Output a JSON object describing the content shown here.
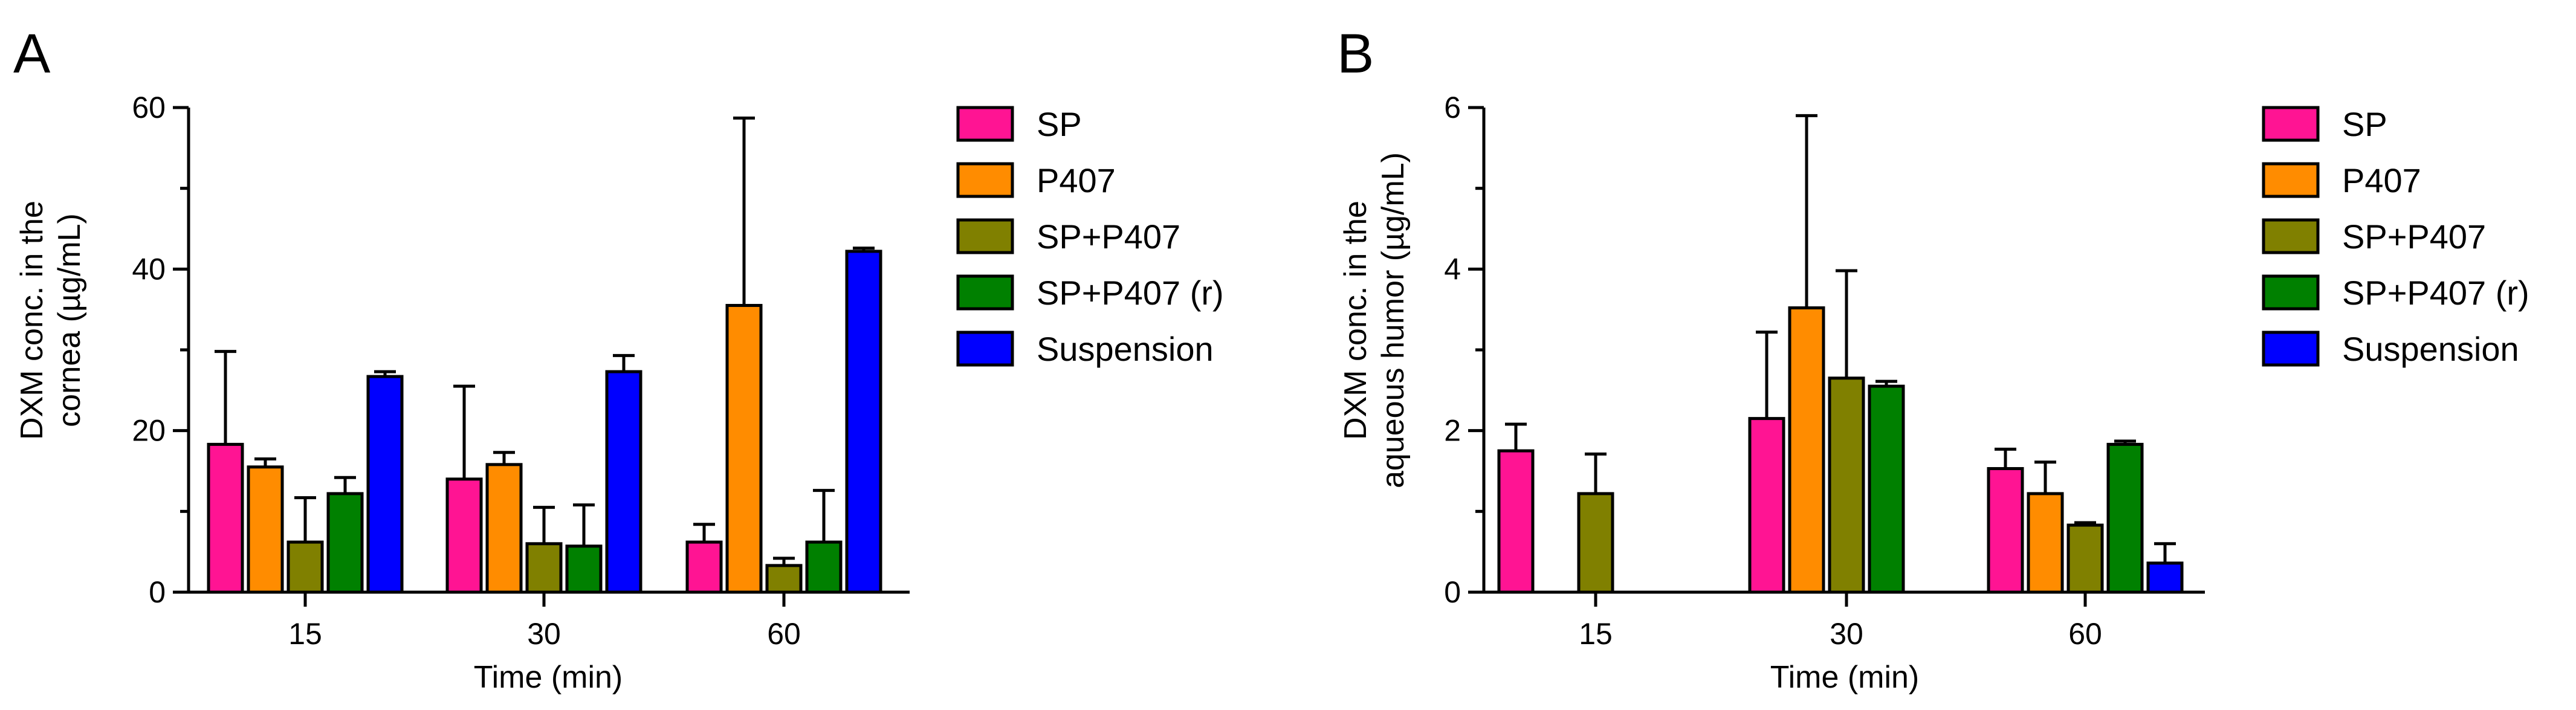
{
  "colors": {
    "SP": "#ff1493",
    "P407": "#ff8c00",
    "SP+P407": "#808000",
    "SP+P407 (r)": "#008000",
    "Suspension": "#0000ff"
  },
  "chart_data": [
    {
      "panel_label": "A",
      "type": "bar",
      "xlabel": "Time (min)",
      "ylabel_lines": [
        "DXM conc. in the",
        "cornea (µg/mL)"
      ],
      "categories": [
        "15",
        "30",
        "60"
      ],
      "ylim": [
        0,
        60
      ],
      "yticks": [
        "0",
        "20",
        "40",
        "60"
      ],
      "error_bars": "upper, SD",
      "legend_position": "right",
      "series": [
        {
          "name": "SP",
          "values": [
            18.3,
            14.0,
            6.2
          ],
          "errors": [
            11.5,
            11.5,
            2.2
          ]
        },
        {
          "name": "P407",
          "values": [
            15.5,
            15.8,
            35.5
          ],
          "errors": [
            1.0,
            1.5,
            23.2
          ]
        },
        {
          "name": "SP+P407",
          "values": [
            6.2,
            6.0,
            3.3
          ],
          "errors": [
            5.5,
            4.5,
            0.9
          ]
        },
        {
          "name": "SP+P407 (r)",
          "values": [
            12.2,
            5.7,
            6.2
          ],
          "errors": [
            2.0,
            5.1,
            6.4
          ]
        },
        {
          "name": "Suspension",
          "values": [
            26.7,
            27.3,
            42.2
          ],
          "errors": [
            0.6,
            2.0,
            0.4
          ]
        }
      ]
    },
    {
      "panel_label": "B",
      "type": "bar",
      "xlabel": "Time (min)",
      "ylabel_lines": [
        "DXM conc. in the",
        "aqueous humor (µg/mL)"
      ],
      "categories": [
        "15",
        "30",
        "60"
      ],
      "ylim": [
        0,
        6
      ],
      "yticks": [
        "0",
        "2",
        "4",
        "6"
      ],
      "error_bars": "upper, SD",
      "legend_position": "right",
      "series": [
        {
          "name": "SP",
          "values": [
            1.75,
            2.15,
            1.53
          ],
          "errors": [
            0.33,
            1.07,
            0.24
          ]
        },
        {
          "name": "P407",
          "values": [
            null,
            3.52,
            1.22
          ],
          "errors": [
            null,
            2.38,
            0.39
          ]
        },
        {
          "name": "SP+P407",
          "values": [
            1.22,
            2.65,
            0.83
          ],
          "errors": [
            0.49,
            1.33,
            0.03
          ]
        },
        {
          "name": "SP+P407 (r)",
          "values": [
            null,
            2.55,
            1.83
          ],
          "errors": [
            null,
            0.06,
            0.04
          ]
        },
        {
          "name": "Suspension",
          "values": [
            null,
            null,
            0.36
          ],
          "errors": [
            null,
            null,
            0.24
          ]
        }
      ]
    }
  ]
}
